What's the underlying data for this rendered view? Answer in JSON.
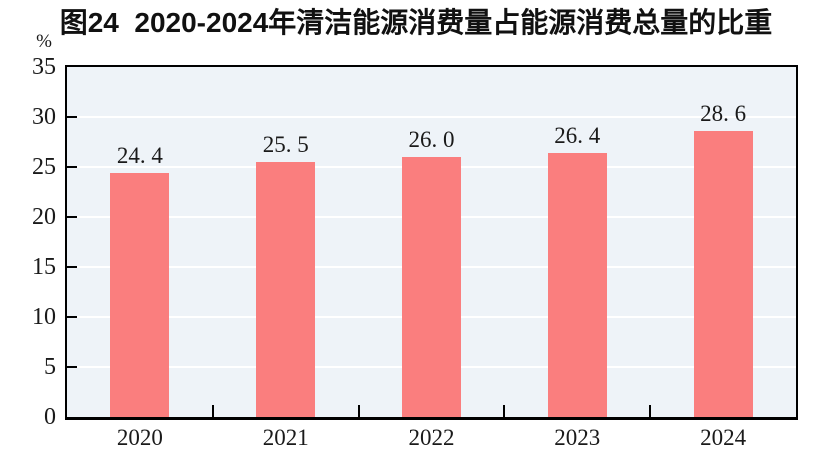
{
  "chart": {
    "title": "图24  2020-2024年清洁能源消费量占能源消费总量的比重",
    "unit": "%"
  },
  "chart_data": {
    "type": "bar",
    "title": "图24  2020-2024年清洁能源消费量占能源消费总量的比重",
    "categories": [
      "2020",
      "2021",
      "2022",
      "2023",
      "2024"
    ],
    "values": [
      24.4,
      25.5,
      26.0,
      26.4,
      28.6
    ],
    "value_labels": [
      "24. 4",
      "25. 5",
      "26. 0",
      "26. 4",
      "28. 6"
    ],
    "xlabel": "",
    "ylabel": "%",
    "ylim": [
      0,
      35
    ],
    "yticks": [
      0,
      5,
      10,
      15,
      20,
      25,
      30,
      35
    ],
    "grid": true,
    "legend_position": "none",
    "colors": {
      "bar": "#FA7E7E",
      "plot_background": "#EEF3F8",
      "gridline": "#FFFFFF",
      "axis": "#000000",
      "text": "#1A1A1A"
    }
  }
}
